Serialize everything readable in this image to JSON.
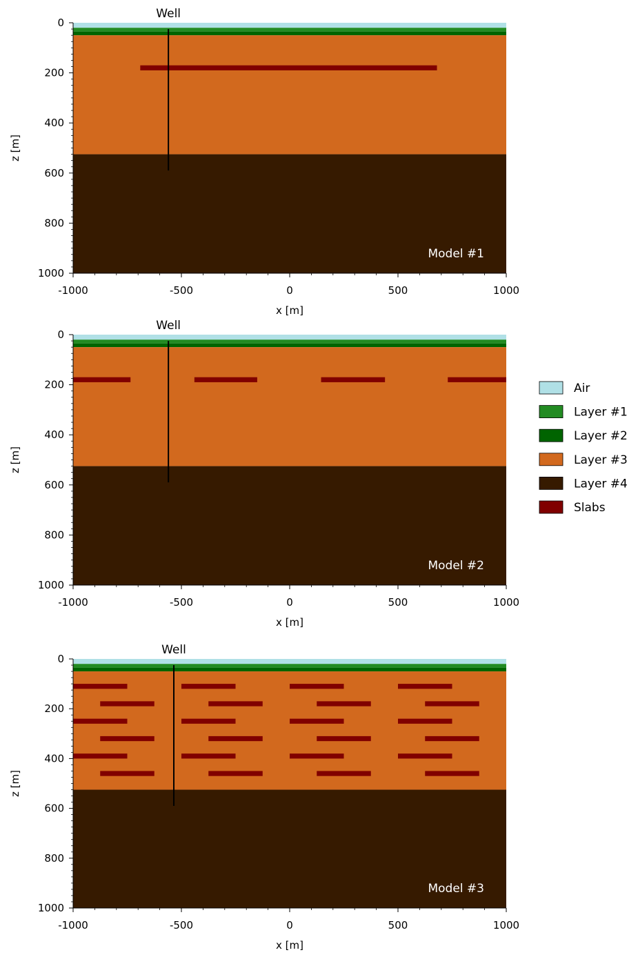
{
  "models": [
    {
      "label": "Model #1",
      "well_label": "Well",
      "well": {
        "x": -560,
        "z_top": 25,
        "z_bottom": 590
      },
      "xlabel": "x [m]",
      "ylabel": "z [m]",
      "xlim": [
        -1000,
        1000
      ],
      "ylim": [
        1000,
        0
      ],
      "xticks": [
        "-1000",
        "-500",
        "0",
        "500",
        "1000"
      ],
      "yticks": [
        "0",
        "200",
        "400",
        "600",
        "800",
        "1000"
      ],
      "slabs": [
        {
          "x0": -690,
          "x1": 680,
          "z0": 170,
          "z1": 190
        }
      ]
    },
    {
      "label": "Model #2",
      "well_label": "Well",
      "well": {
        "x": -560,
        "z_top": 25,
        "z_bottom": 590
      },
      "xlabel": "x [m]",
      "ylabel": "z [m]",
      "xlim": [
        -1000,
        1000
      ],
      "ylim": [
        1000,
        0
      ],
      "xticks": [
        "-1000",
        "-500",
        "0",
        "500",
        "1000"
      ],
      "yticks": [
        "0",
        "200",
        "400",
        "600",
        "800",
        "1000"
      ],
      "slabs": [
        {
          "x0": -1000,
          "x1": -735,
          "z0": 170,
          "z1": 190
        },
        {
          "x0": -440,
          "x1": -150,
          "z0": 170,
          "z1": 190
        },
        {
          "x0": 145,
          "x1": 440,
          "z0": 170,
          "z1": 190
        },
        {
          "x0": 730,
          "x1": 1000,
          "z0": 170,
          "z1": 190
        }
      ]
    },
    {
      "label": "Model #3",
      "well_label": "Well",
      "well": {
        "x": -535,
        "z_top": 25,
        "z_bottom": 590
      },
      "xlabel": "x [m]",
      "ylabel": "z [m]",
      "xlim": [
        -1000,
        1000
      ],
      "ylim": [
        1000,
        0
      ],
      "xticks": [
        "-1000",
        "-500",
        "0",
        "500",
        "1000"
      ],
      "yticks": [
        "0",
        "200",
        "400",
        "600",
        "800",
        "1000"
      ],
      "slabs": [
        {
          "x0": -1000,
          "x1": -750,
          "z0": 100,
          "z1": 120
        },
        {
          "x0": -500,
          "x1": -250,
          "z0": 100,
          "z1": 120
        },
        {
          "x0": 0,
          "x1": 250,
          "z0": 100,
          "z1": 120
        },
        {
          "x0": 500,
          "x1": 750,
          "z0": 100,
          "z1": 120
        },
        {
          "x0": -875,
          "x1": -625,
          "z0": 170,
          "z1": 190
        },
        {
          "x0": -375,
          "x1": -125,
          "z0": 170,
          "z1": 190
        },
        {
          "x0": 125,
          "x1": 375,
          "z0": 170,
          "z1": 190
        },
        {
          "x0": 625,
          "x1": 875,
          "z0": 170,
          "z1": 190
        },
        {
          "x0": -1000,
          "x1": -750,
          "z0": 240,
          "z1": 260
        },
        {
          "x0": -500,
          "x1": -250,
          "z0": 240,
          "z1": 260
        },
        {
          "x0": 0,
          "x1": 250,
          "z0": 240,
          "z1": 260
        },
        {
          "x0": 500,
          "x1": 750,
          "z0": 240,
          "z1": 260
        },
        {
          "x0": -875,
          "x1": -625,
          "z0": 310,
          "z1": 330
        },
        {
          "x0": -375,
          "x1": -125,
          "z0": 310,
          "z1": 330
        },
        {
          "x0": 125,
          "x1": 375,
          "z0": 310,
          "z1": 330
        },
        {
          "x0": 625,
          "x1": 875,
          "z0": 310,
          "z1": 330
        },
        {
          "x0": -1000,
          "x1": -750,
          "z0": 380,
          "z1": 400
        },
        {
          "x0": -500,
          "x1": -250,
          "z0": 380,
          "z1": 400
        },
        {
          "x0": 0,
          "x1": 250,
          "z0": 380,
          "z1": 400
        },
        {
          "x0": 500,
          "x1": 750,
          "z0": 380,
          "z1": 400
        },
        {
          "x0": -875,
          "x1": -625,
          "z0": 450,
          "z1": 470
        },
        {
          "x0": -375,
          "x1": -125,
          "z0": 450,
          "z1": 470
        },
        {
          "x0": 125,
          "x1": 375,
          "z0": 450,
          "z1": 470
        },
        {
          "x0": 625,
          "x1": 875,
          "z0": 450,
          "z1": 470
        }
      ]
    }
  ],
  "layers": [
    {
      "name": "Air",
      "color": "#b0e0e6",
      "z0": 0,
      "z1": 20
    },
    {
      "name": "Layer #1",
      "color": "#228b22",
      "z0": 20,
      "z1": 35
    },
    {
      "name": "Layer #2",
      "color": "#006400",
      "z0": 35,
      "z1": 50
    },
    {
      "name": "Layer #3",
      "color": "#d2691e",
      "z0": 50,
      "z1": 525
    },
    {
      "name": "Layer #4",
      "color": "#361a00",
      "z0": 525,
      "z1": 1000
    }
  ],
  "legend": [
    {
      "label": "Air",
      "color": "#b0e0e6"
    },
    {
      "label": "Layer #1",
      "color": "#228b22"
    },
    {
      "label": "Layer #2",
      "color": "#006400"
    },
    {
      "label": "Layer #3",
      "color": "#d2691e"
    },
    {
      "label": "Layer #4",
      "color": "#361a00"
    },
    {
      "label": "Slabs",
      "color": "#800000"
    }
  ]
}
